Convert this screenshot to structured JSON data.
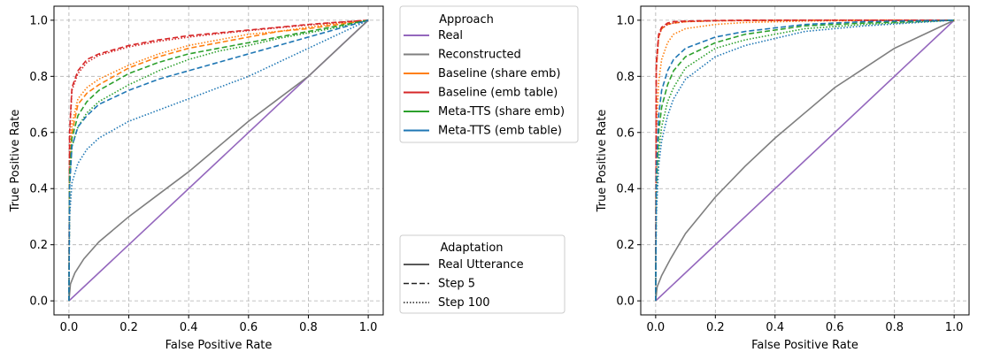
{
  "chart_data": [
    {
      "type": "line",
      "xlabel": "False Positive Rate",
      "ylabel": "True Positive Rate",
      "xlim": [
        -0.05,
        1.05
      ],
      "ylim": [
        -0.05,
        1.05
      ],
      "xticks": [
        "0.0",
        "0.2",
        "0.4",
        "0.6",
        "0.8",
        "1.0"
      ],
      "yticks": [
        "0.0",
        "0.2",
        "0.4",
        "0.6",
        "0.8",
        "1.0"
      ],
      "grid": true,
      "series": [
        {
          "name": "Real",
          "style": "solid",
          "color": "#9467bd",
          "x": [
            0,
            1
          ],
          "y": [
            0,
            1
          ]
        },
        {
          "name": "Reconstructed",
          "style": "solid",
          "color": "#7f7f7f",
          "x": [
            0,
            0.005,
            0.02,
            0.05,
            0.1,
            0.2,
            0.3,
            0.4,
            0.5,
            0.6,
            0.7,
            0.8,
            0.9,
            1.0
          ],
          "y": [
            0,
            0.06,
            0.1,
            0.15,
            0.21,
            0.3,
            0.38,
            0.46,
            0.55,
            0.64,
            0.72,
            0.8,
            0.9,
            1.0
          ]
        },
        {
          "name": "Baseline (share emb)",
          "style": "dashed",
          "color": "#ff7f0e",
          "x": [
            0,
            0.002,
            0.01,
            0.03,
            0.06,
            0.1,
            0.2,
            0.3,
            0.4,
            0.5,
            0.6,
            0.7,
            0.8,
            0.9,
            1.0
          ],
          "y": [
            0,
            0.45,
            0.6,
            0.7,
            0.74,
            0.77,
            0.83,
            0.87,
            0.9,
            0.92,
            0.94,
            0.96,
            0.97,
            0.985,
            1.0
          ]
        },
        {
          "name": "Baseline (share emb)",
          "style": "dotted",
          "color": "#ff7f0e",
          "x": [
            0,
            0.002,
            0.01,
            0.03,
            0.06,
            0.1,
            0.2,
            0.3,
            0.4,
            0.5,
            0.6,
            0.7,
            0.8,
            0.9,
            1.0
          ],
          "y": [
            0,
            0.5,
            0.63,
            0.72,
            0.76,
            0.79,
            0.84,
            0.88,
            0.91,
            0.93,
            0.95,
            0.96,
            0.975,
            0.99,
            1.0
          ]
        },
        {
          "name": "Baseline (emb table)",
          "style": "dashed",
          "color": "#d62728",
          "x": [
            0,
            0.002,
            0.01,
            0.03,
            0.06,
            0.1,
            0.2,
            0.3,
            0.4,
            0.5,
            0.6,
            0.7,
            0.8,
            0.9,
            1.0
          ],
          "y": [
            0,
            0.6,
            0.76,
            0.82,
            0.86,
            0.88,
            0.91,
            0.93,
            0.945,
            0.955,
            0.965,
            0.975,
            0.985,
            0.993,
            1.0
          ]
        },
        {
          "name": "Baseline (emb table)",
          "style": "dotted",
          "color": "#d62728",
          "x": [
            0,
            0.002,
            0.01,
            0.03,
            0.06,
            0.1,
            0.2,
            0.3,
            0.4,
            0.5,
            0.6,
            0.7,
            0.8,
            0.9,
            1.0
          ],
          "y": [
            0,
            0.58,
            0.75,
            0.81,
            0.85,
            0.875,
            0.905,
            0.925,
            0.94,
            0.952,
            0.963,
            0.973,
            0.983,
            0.992,
            1.0
          ]
        },
        {
          "name": "Meta-TTS (share emb)",
          "style": "dashed",
          "color": "#2ca02c",
          "x": [
            0,
            0.002,
            0.01,
            0.03,
            0.06,
            0.1,
            0.2,
            0.3,
            0.4,
            0.5,
            0.6,
            0.7,
            0.8,
            0.9,
            1.0
          ],
          "y": [
            0,
            0.45,
            0.58,
            0.66,
            0.71,
            0.75,
            0.81,
            0.85,
            0.88,
            0.9,
            0.92,
            0.94,
            0.96,
            0.98,
            1.0
          ]
        },
        {
          "name": "Meta-TTS (share emb)",
          "style": "dotted",
          "color": "#2ca02c",
          "x": [
            0,
            0.002,
            0.01,
            0.03,
            0.06,
            0.1,
            0.2,
            0.3,
            0.4,
            0.5,
            0.6,
            0.7,
            0.8,
            0.9,
            1.0
          ],
          "y": [
            0,
            0.42,
            0.55,
            0.62,
            0.67,
            0.71,
            0.77,
            0.82,
            0.86,
            0.89,
            0.91,
            0.935,
            0.955,
            0.975,
            1.0
          ]
        },
        {
          "name": "Meta-TTS (emb table)",
          "style": "dashed",
          "color": "#1f77b4",
          "x": [
            0,
            0.002,
            0.01,
            0.03,
            0.06,
            0.1,
            0.2,
            0.3,
            0.4,
            0.5,
            0.6,
            0.7,
            0.8,
            0.9,
            1.0
          ],
          "y": [
            0,
            0.4,
            0.55,
            0.62,
            0.66,
            0.7,
            0.75,
            0.79,
            0.82,
            0.85,
            0.88,
            0.91,
            0.94,
            0.97,
            1.0
          ]
        },
        {
          "name": "Meta-TTS (emb table)",
          "style": "dotted",
          "color": "#1f77b4",
          "x": [
            0,
            0.002,
            0.01,
            0.03,
            0.06,
            0.1,
            0.2,
            0.3,
            0.4,
            0.5,
            0.6,
            0.7,
            0.8,
            0.9,
            1.0
          ],
          "y": [
            0,
            0.3,
            0.42,
            0.49,
            0.54,
            0.58,
            0.64,
            0.68,
            0.72,
            0.76,
            0.8,
            0.85,
            0.9,
            0.95,
            1.0
          ]
        }
      ]
    },
    {
      "type": "line",
      "xlabel": "False Positive Rate",
      "ylabel": "True Positive Rate",
      "xlim": [
        -0.05,
        1.05
      ],
      "ylim": [
        -0.05,
        1.05
      ],
      "xticks": [
        "0.0",
        "0.2",
        "0.4",
        "0.6",
        "0.8",
        "1.0"
      ],
      "yticks": [
        "0.0",
        "0.2",
        "0.4",
        "0.6",
        "0.8",
        "1.0"
      ],
      "grid": true,
      "series": [
        {
          "name": "Real",
          "style": "solid",
          "color": "#9467bd",
          "x": [
            0,
            1
          ],
          "y": [
            0,
            1
          ]
        },
        {
          "name": "Reconstructed",
          "style": "solid",
          "color": "#7f7f7f",
          "x": [
            0,
            0.005,
            0.02,
            0.05,
            0.1,
            0.2,
            0.3,
            0.4,
            0.5,
            0.6,
            0.7,
            0.8,
            0.9,
            1.0
          ],
          "y": [
            0,
            0.05,
            0.09,
            0.15,
            0.24,
            0.37,
            0.48,
            0.58,
            0.67,
            0.76,
            0.83,
            0.9,
            0.95,
            1.0
          ]
        },
        {
          "name": "Baseline (share emb)",
          "style": "dashed",
          "color": "#ff7f0e",
          "x": [
            0,
            0.002,
            0.01,
            0.02,
            0.04,
            0.06,
            0.1,
            0.2,
            0.3,
            0.5,
            0.7,
            1.0
          ],
          "y": [
            0,
            0.82,
            0.94,
            0.97,
            0.985,
            0.99,
            0.995,
            0.998,
            0.999,
            1.0,
            1.0,
            1.0
          ]
        },
        {
          "name": "Baseline (share emb)",
          "style": "dotted",
          "color": "#ff7f0e",
          "x": [
            0,
            0.002,
            0.01,
            0.02,
            0.04,
            0.06,
            0.1,
            0.2,
            0.3,
            0.5,
            0.7,
            1.0
          ],
          "y": [
            0,
            0.6,
            0.78,
            0.86,
            0.92,
            0.95,
            0.97,
            0.985,
            0.992,
            0.997,
            0.999,
            1.0
          ]
        },
        {
          "name": "Baseline (emb table)",
          "style": "dashed",
          "color": "#d62728",
          "x": [
            0,
            0.002,
            0.01,
            0.02,
            0.04,
            0.06,
            0.1,
            0.2,
            0.3,
            0.5,
            0.7,
            1.0
          ],
          "y": [
            0,
            0.85,
            0.95,
            0.975,
            0.99,
            0.995,
            0.997,
            0.999,
            1.0,
            1.0,
            1.0,
            1.0
          ]
        },
        {
          "name": "Baseline (emb table)",
          "style": "dotted",
          "color": "#d62728",
          "x": [
            0,
            0.002,
            0.01,
            0.02,
            0.04,
            0.06,
            0.1,
            0.2,
            0.3,
            0.5,
            0.7,
            1.0
          ],
          "y": [
            0,
            0.83,
            0.94,
            0.97,
            0.985,
            0.99,
            0.995,
            0.998,
            0.999,
            1.0,
            1.0,
            1.0
          ]
        },
        {
          "name": "Meta-TTS (share emb)",
          "style": "dashed",
          "color": "#2ca02c",
          "x": [
            0,
            0.002,
            0.01,
            0.02,
            0.04,
            0.06,
            0.1,
            0.2,
            0.3,
            0.5,
            0.7,
            1.0
          ],
          "y": [
            0,
            0.4,
            0.6,
            0.69,
            0.77,
            0.82,
            0.87,
            0.92,
            0.95,
            0.98,
            0.99,
            1.0
          ]
        },
        {
          "name": "Meta-TTS (share emb)",
          "style": "dotted",
          "color": "#2ca02c",
          "x": [
            0,
            0.002,
            0.01,
            0.02,
            0.04,
            0.06,
            0.1,
            0.2,
            0.3,
            0.5,
            0.7,
            1.0
          ],
          "y": [
            0,
            0.35,
            0.53,
            0.62,
            0.71,
            0.76,
            0.83,
            0.9,
            0.93,
            0.97,
            0.985,
            1.0
          ]
        },
        {
          "name": "Meta-TTS (emb table)",
          "style": "dashed",
          "color": "#1f77b4",
          "x": [
            0,
            0.002,
            0.01,
            0.02,
            0.04,
            0.06,
            0.1,
            0.2,
            0.3,
            0.5,
            0.7,
            1.0
          ],
          "y": [
            0,
            0.45,
            0.66,
            0.75,
            0.82,
            0.86,
            0.9,
            0.94,
            0.96,
            0.985,
            0.995,
            1.0
          ]
        },
        {
          "name": "Meta-TTS (emb table)",
          "style": "dotted",
          "color": "#1f77b4",
          "x": [
            0,
            0.002,
            0.01,
            0.02,
            0.04,
            0.06,
            0.1,
            0.2,
            0.3,
            0.5,
            0.7,
            1.0
          ],
          "y": [
            0,
            0.3,
            0.48,
            0.57,
            0.66,
            0.72,
            0.79,
            0.87,
            0.91,
            0.96,
            0.98,
            1.0
          ]
        }
      ]
    }
  ],
  "legend_approach": {
    "title": "Approach",
    "entries": [
      {
        "label": "Real",
        "color": "#9467bd"
      },
      {
        "label": "Reconstructed",
        "color": "#7f7f7f"
      },
      {
        "label": "Baseline (share emb)",
        "color": "#ff7f0e"
      },
      {
        "label": "Baseline (emb table)",
        "color": "#d62728"
      },
      {
        "label": "Meta-TTS (share emb)",
        "color": "#2ca02c"
      },
      {
        "label": "Meta-TTS (emb table)",
        "color": "#1f77b4"
      }
    ]
  },
  "legend_adaptation": {
    "title": "Adaptation",
    "entries": [
      {
        "label": "Real Utterance",
        "style": "solid"
      },
      {
        "label": "Step 5",
        "style": "dashed"
      },
      {
        "label": "Step 100",
        "style": "dotted"
      }
    ]
  }
}
